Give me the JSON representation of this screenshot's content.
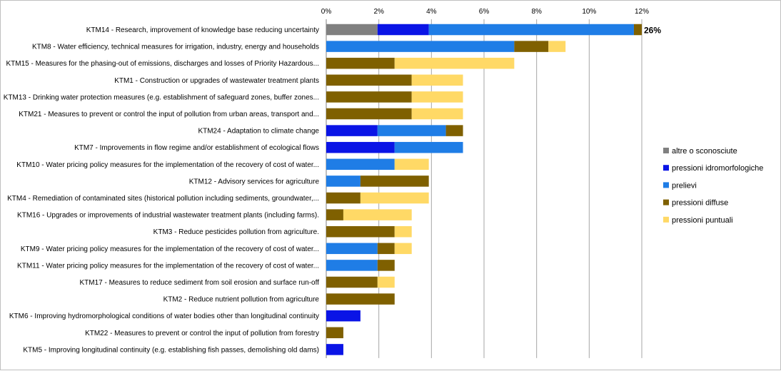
{
  "chart_data": {
    "type": "bar",
    "orientation": "horizontal",
    "stacked": true,
    "xlim": [
      0,
      12
    ],
    "xticks": [
      "0%",
      "2%",
      "4%",
      "6%",
      "8%",
      "10%",
      "12%"
    ],
    "grid": "vertical",
    "legend_position": "right",
    "categories": [
      "KTM14 - Research, improvement of knowledge base reducing uncertainty",
      "KTM8 - Water efficiency, technical measures for irrigation, industry, energy and households",
      "KTM15 - Measures for the phasing-out of emissions, discharges and losses of Priority Hazardous...",
      "KTM1 - Construction or upgrades of wastewater treatment plants",
      "KTM13 - Drinking water protection measures (e.g. establishment of safeguard zones, buffer zones...",
      "KTM21 - Measures to prevent or control the input of pollution from urban areas, transport and...",
      "KTM24 - Adaptation to climate change",
      "KTM7 - Improvements in flow regime and/or establishment of ecological flows",
      "KTM10 - Water pricing policy measures for the implementation of the recovery of cost of water...",
      "KTM12 - Advisory services for agriculture",
      "KTM4 - Remediation of contaminated sites (historical pollution including sediments, groundwater,...",
      "KTM16 - Upgrades or improvements of industrial wastewater treatment plants (including farms).",
      "KTM3 - Reduce pesticides pollution from agriculture.",
      "KTM9 - Water pricing policy measures for the implementation of the recovery of cost of water...",
      "KTM11 - Water pricing policy measures for the implementation of the recovery of cost of water...",
      "KTM17 - Measures to reduce sediment from soil erosion and surface run-off",
      "KTM2 - Reduce nutrient pollution from agriculture",
      "KTM6 - Improving hydromorphological conditions of water bodies other than longitudinal continuity",
      "KTM22 - Measures to prevent or control the input of pollution from forestry",
      "KTM5 - Improving longitudinal continuity (e.g. establishing fish passes, demolishing old dams)"
    ],
    "series": [
      {
        "name": "altre o sconosciute",
        "color": "#808080",
        "values": [
          1.95,
          0,
          0,
          0,
          0,
          0,
          0,
          0,
          0,
          0,
          0,
          0,
          0,
          0,
          0,
          0,
          0,
          0,
          0,
          0
        ]
      },
      {
        "name": "pressioni idromorfologiche",
        "color": "#0a14e6",
        "values": [
          1.95,
          0,
          0,
          0,
          0,
          0,
          1.95,
          2.6,
          0,
          0,
          0,
          0,
          0,
          0,
          0,
          0,
          0,
          1.3,
          0,
          0.65
        ]
      },
      {
        "name": "prelievi",
        "color": "#1f7de6",
        "values": [
          7.8,
          7.15,
          0,
          0,
          0,
          0,
          2.6,
          2.6,
          2.6,
          1.3,
          0,
          0,
          0,
          1.95,
          1.95,
          0,
          0,
          0,
          0,
          0
        ]
      },
      {
        "name": "pressioni diffuse",
        "color": "#7f6000",
        "values": [
          0.3,
          1.3,
          2.6,
          3.25,
          3.25,
          3.25,
          0.65,
          0,
          0,
          2.6,
          1.3,
          0.65,
          2.6,
          0.65,
          0.65,
          1.95,
          2.6,
          0,
          0.65,
          0
        ]
      },
      {
        "name": "pressioni puntuali",
        "color": "#ffd966",
        "values": [
          0,
          0.65,
          4.55,
          1.95,
          1.95,
          1.95,
          0,
          0,
          1.3,
          0,
          2.6,
          2.6,
          0.65,
          0.65,
          0,
          0.65,
          0,
          0,
          0,
          0
        ]
      }
    ],
    "annotations": [
      {
        "category_index": 0,
        "text": "26%"
      }
    ]
  }
}
